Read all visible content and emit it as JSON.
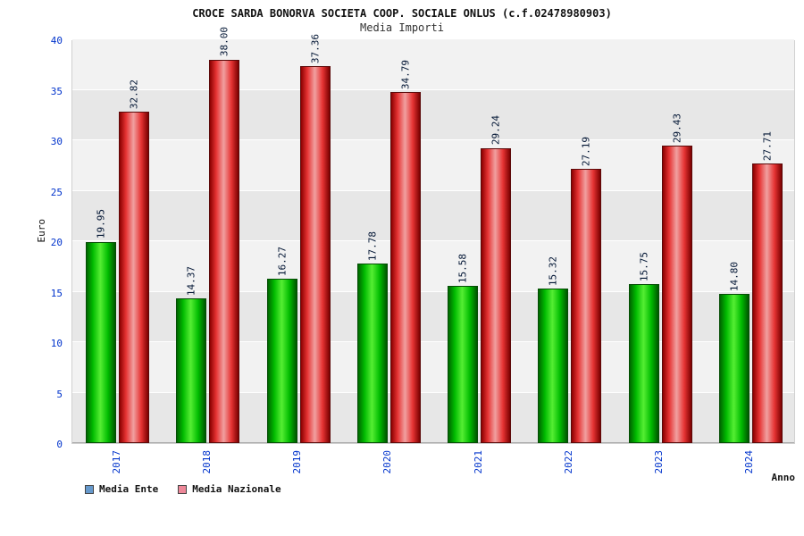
{
  "header": {
    "title": "CROCE SARDA BONORVA SOCIETA COOP. SOCIALE ONLUS (c.f.02478980903)",
    "subtitle": "Media Importi"
  },
  "chart_data": {
    "type": "bar",
    "title": "CROCE SARDA BONORVA SOCIETA COOP. SOCIALE ONLUS (c.f.02478980903)",
    "subtitle": "Media Importi",
    "categories": [
      "2017",
      "2018",
      "2019",
      "2020",
      "2021",
      "2022",
      "2023",
      "2024"
    ],
    "series": [
      {
        "name": "Media Ente",
        "bar_color": "#00cc00",
        "marker_color": "#6699cc",
        "values": [
          19.95,
          14.37,
          16.27,
          17.78,
          15.58,
          15.32,
          15.75,
          14.8
        ]
      },
      {
        "name": "Media Nazionale",
        "bar_color": "#e63333",
        "marker_color": "#ee8899",
        "values": [
          32.82,
          38.0,
          37.36,
          34.79,
          29.24,
          27.19,
          29.43,
          27.71
        ]
      }
    ],
    "xlabel": "Anno",
    "ylabel": "Euro",
    "ylim": [
      0,
      40
    ],
    "ytick_step": 5,
    "grid": true,
    "legend_position": "bottom",
    "value_label_decimals": 2,
    "axis_text_color": "#0033cc"
  }
}
